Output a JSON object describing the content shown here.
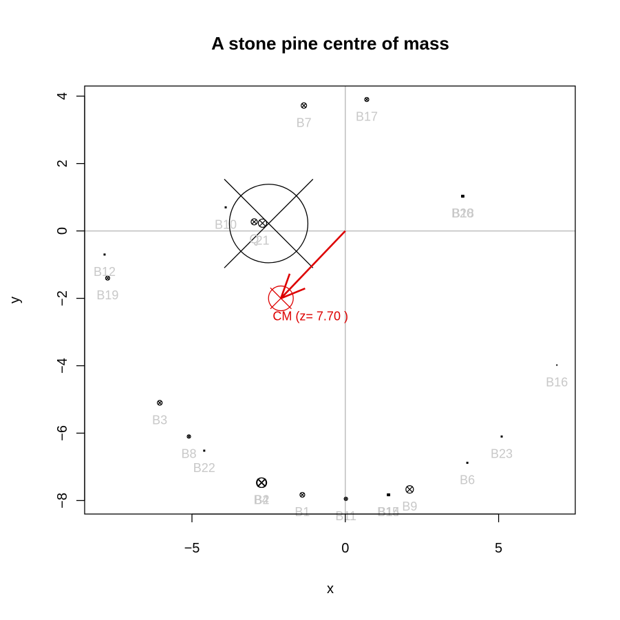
{
  "chart_data": {
    "type": "scatter",
    "title": "A stone pine centre of mass",
    "xlabel": "x",
    "ylabel": "y",
    "xlim": [
      -8.5,
      7.5
    ],
    "ylim": [
      -8.4,
      4.3
    ],
    "x_ticks": [
      -5,
      0,
      5
    ],
    "y_ticks": [
      -8,
      -6,
      -4,
      -2,
      0,
      2,
      4
    ],
    "x_tick_labels": [
      "−5",
      "0",
      "5"
    ],
    "y_tick_labels": [
      "−8",
      "−6",
      "−4",
      "−2",
      "0",
      "2",
      "4"
    ],
    "reference_lines": {
      "x": 0,
      "y": 0
    },
    "colors": {
      "points": "#000000",
      "labels": "#c8c8c8",
      "reference": "#bebebe",
      "centre_of_mass": "#dd0000"
    },
    "points": [
      {
        "label": "B7",
        "x": -1.35,
        "y": 3.72,
        "size": 8
      },
      {
        "label": "B17",
        "x": 0.7,
        "y": 3.9,
        "size": 6
      },
      {
        "label": "B10",
        "x": -3.9,
        "y": 0.7,
        "size": 3
      },
      {
        "label": "Q",
        "x": -2.97,
        "y": 0.27,
        "size": 9
      },
      {
        "label": "21",
        "x": -2.7,
        "y": 0.23,
        "size": 12
      },
      {
        "label": "B20",
        "x": 3.82,
        "y": 1.03,
        "size": 4
      },
      {
        "label": "B18",
        "x": 3.84,
        "y": 1.03,
        "size": 4
      },
      {
        "label": "B12",
        "x": -7.85,
        "y": -0.7,
        "size": 3
      },
      {
        "label": "B19",
        "x": -7.75,
        "y": -1.4,
        "size": 6
      },
      {
        "label": "B16",
        "x": 6.9,
        "y": -3.98,
        "size": 2
      },
      {
        "label": "B3",
        "x": -6.05,
        "y": -5.1,
        "size": 7
      },
      {
        "label": "B8",
        "x": -5.1,
        "y": -6.1,
        "size": 5
      },
      {
        "label": "B22",
        "x": -4.6,
        "y": -6.52,
        "size": 3
      },
      {
        "label": "B23",
        "x": 5.1,
        "y": -6.1,
        "size": 3
      },
      {
        "label": "B6",
        "x": 3.98,
        "y": -6.88,
        "size": 3
      },
      {
        "label": "B2",
        "x": -2.72,
        "y": -7.47,
        "size": 14
      },
      {
        "label": "B4",
        "x": -2.74,
        "y": -7.47,
        "size": 14
      },
      {
        "label": "B1",
        "x": -1.4,
        "y": -7.83,
        "size": 7
      },
      {
        "label": "B11",
        "x": 0.02,
        "y": -7.95,
        "size": 5
      },
      {
        "label": "B15",
        "x": 1.4,
        "y": -7.83,
        "size": 4
      },
      {
        "label": "B14",
        "x": 1.42,
        "y": -7.83,
        "size": 4
      },
      {
        "label": "B9",
        "x": 2.1,
        "y": -7.67,
        "size": 11
      }
    ],
    "large_target": {
      "x": -2.5,
      "y": 0.22,
      "radius": 1.28
    },
    "centre_of_mass": {
      "x": -2.1,
      "y": -2.0,
      "z": 7.7,
      "label": "CM (z= 7.70 )"
    },
    "arrow": {
      "from": [
        0,
        0
      ],
      "to": [
        -2.1,
        -2.0
      ]
    }
  }
}
